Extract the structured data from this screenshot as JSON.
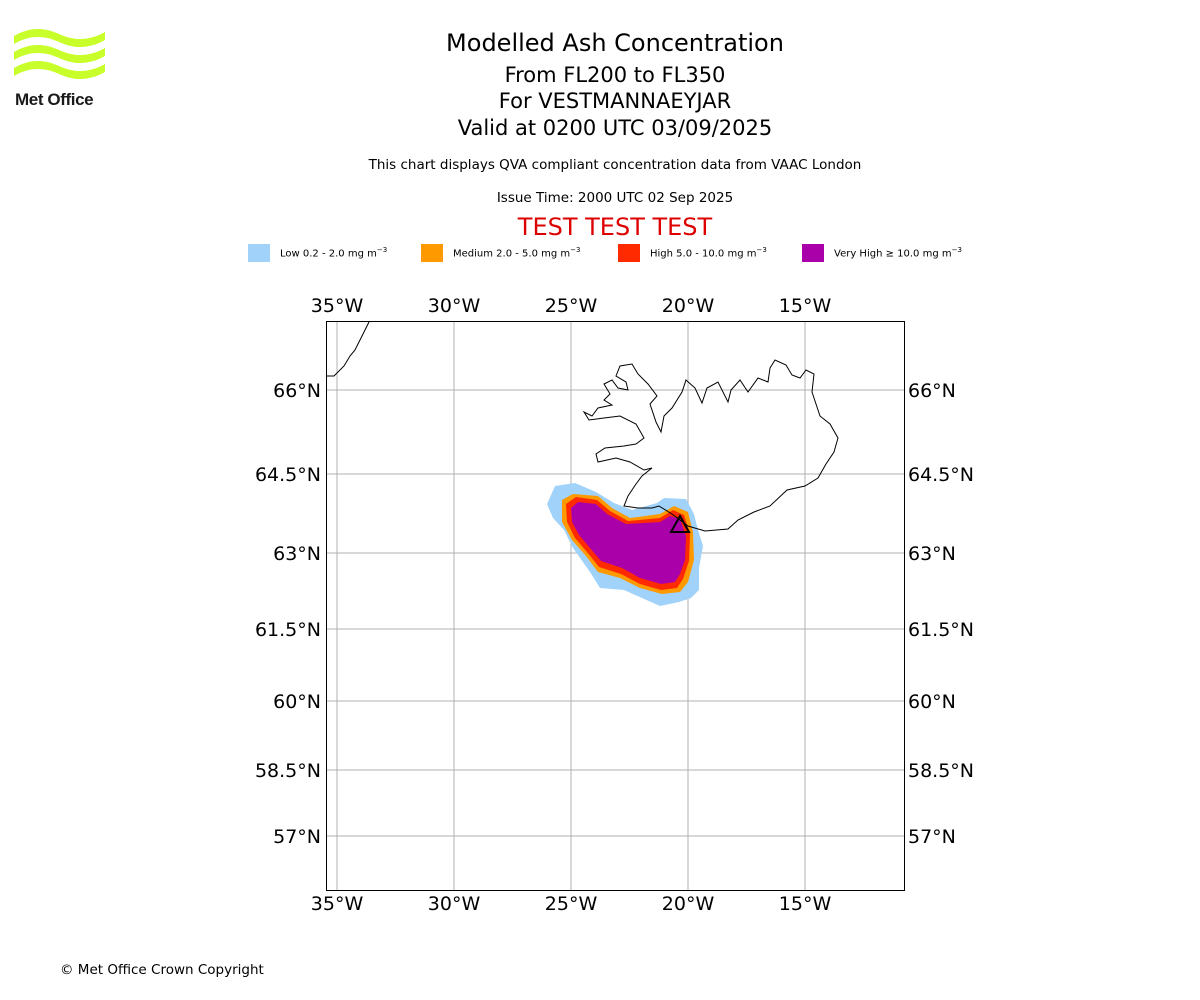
{
  "logo": {
    "text": "Met Office",
    "color": "#c8ff2a"
  },
  "header": {
    "title": "Modelled Ash Concentration",
    "levels": "From FL200 to FL350",
    "volcano": "For VESTMANNAEYJAR",
    "valid": "Valid at 0200 UTC 03/09/2025",
    "subtitle": "This chart displays QVA compliant concentration data from VAAC London",
    "issue_time": "Issue Time: 2000 UTC 02 Sep 2025",
    "test_banner": "TEST TEST TEST",
    "test_color": "#dd0000"
  },
  "legend": [
    {
      "label": "Low 0.2 - 2.0 mg m",
      "exp": "−3",
      "color": "#a0d2fa"
    },
    {
      "label": "Medium 2.0 - 5.0 mg m",
      "exp": "−3",
      "color": "#ff9900"
    },
    {
      "label": "High 5.0 - 10.0 mg m",
      "exp": "−3",
      "color": "#ff2a00"
    },
    {
      "label": "Very High  ≥  10.0 mg m",
      "exp": "−3",
      "color": "#aa00aa"
    }
  ],
  "map": {
    "lon_ticks": [
      "35°W",
      "30°W",
      "25°W",
      "20°W",
      "15°W"
    ],
    "lat_ticks": [
      "66°N",
      "64.5°N",
      "63°N",
      "61.5°N",
      "60°N",
      "58.5°N",
      "57°N"
    ],
    "grid": true,
    "volcano_marker": "black-triangle-outline"
  },
  "footer": {
    "copyright": "© Met Office Crown Copyright"
  }
}
